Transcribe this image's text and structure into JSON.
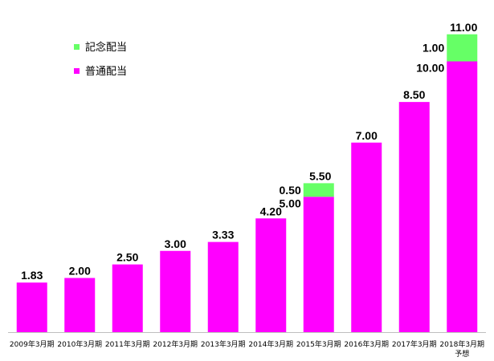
{
  "chart_data": {
    "type": "bar",
    "stacked": true,
    "title": "",
    "xlabel": "",
    "ylabel": "",
    "ylim": [
      0,
      11.5
    ],
    "grid": false,
    "legend_position": "top-left",
    "categories": [
      "2009年3月期",
      "2010年3月期",
      "2011年3月期",
      "2012年3月期",
      "2013年3月期",
      "2014年3月期",
      "2015年3月期",
      "2016年3月期",
      "2017年3月期",
      "2018年3月期"
    ],
    "category_subtitles": [
      "",
      "",
      "",
      "",
      "",
      "",
      "",
      "",
      "",
      "予想"
    ],
    "series": [
      {
        "name": "普通配当",
        "color": "#ff00ff",
        "values": [
          1.83,
          2.0,
          2.5,
          3.0,
          3.33,
          4.2,
          5.0,
          7.0,
          8.5,
          10.0
        ],
        "labels": [
          "1.83",
          "2.00",
          "2.50",
          "3.00",
          "3.33",
          "4.20",
          "5.00",
          "7.00",
          "8.50",
          "10.00"
        ]
      },
      {
        "name": "記念配当",
        "color": "#66ff66",
        "values": [
          0,
          0,
          0,
          0,
          0,
          0,
          0.5,
          0,
          0,
          1.0
        ],
        "labels": [
          "",
          "",
          "",
          "",
          "",
          "",
          "0.50",
          "",
          "",
          "1.00"
        ]
      }
    ],
    "totals": [
      null,
      null,
      null,
      null,
      null,
      null,
      5.5,
      null,
      null,
      11.0
    ],
    "total_labels": [
      "",
      "",
      "",
      "",
      "",
      "",
      "5.50",
      "",
      "",
      "11.00"
    ]
  }
}
